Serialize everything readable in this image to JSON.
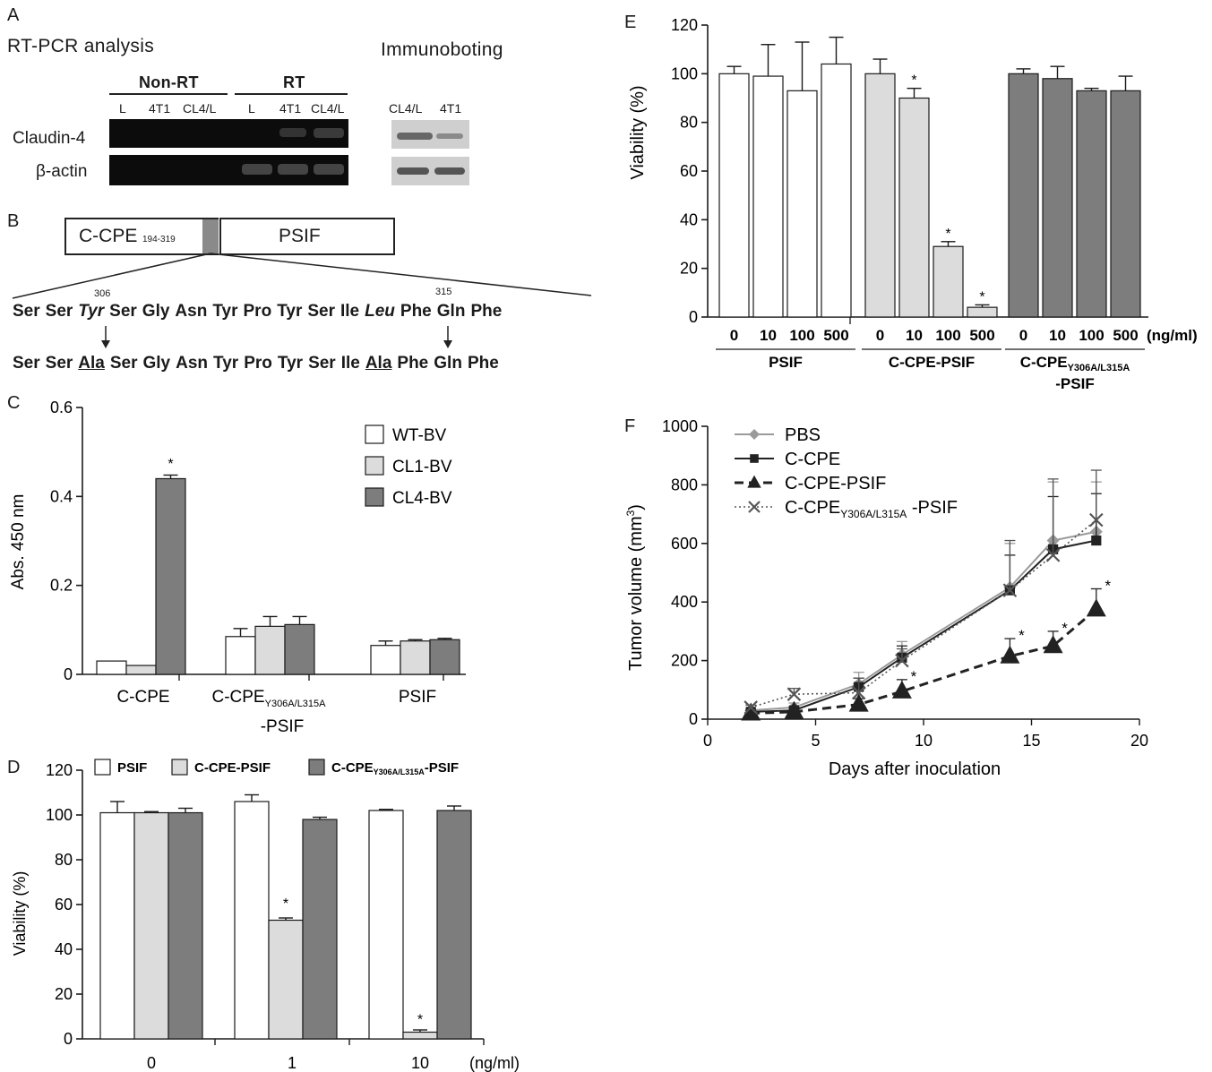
{
  "panelA": {
    "letter": "A",
    "rt_title": "RT-PCR analysis",
    "ib_title": "Immunoboting",
    "group_nonrt": "Non-RT",
    "group_rt": "RT",
    "lanes_nonrt": [
      "L",
      "4T1",
      "CL4/L"
    ],
    "lanes_rt": [
      "L",
      "4T1",
      "CL4/L"
    ],
    "lanes_ib": [
      "CL4/L",
      "4T1"
    ],
    "row1": "Claudin-4",
    "row2": "β-actin"
  },
  "panelB": {
    "letter": "B",
    "box1": "C-CPE",
    "box1_sub": "194-319",
    "box2": "PSIF",
    "pos306": "306",
    "pos315": "315",
    "wild": [
      "Ser",
      "Ser",
      "Tyr",
      "Ser",
      "Gly",
      "Asn",
      "Tyr",
      "Pro",
      "Tyr",
      "Ser",
      "Ile",
      "Leu",
      "Phe",
      "Gln",
      "Phe"
    ],
    "mutant": [
      "Ser",
      "Ser",
      "Ala",
      "Ser",
      "Gly",
      "Asn",
      "Tyr",
      "Pro",
      "Tyr",
      "Ser",
      "Ile",
      "Ala",
      "Phe",
      "Gln",
      "Phe"
    ]
  },
  "colors": {
    "white_bar": "#ffffff",
    "light_bar": "#dcdcdc",
    "dark_bar": "#7d7d7d",
    "axis": "#1a1a1a"
  },
  "chart_data": [
    {
      "panel": "C",
      "type": "bar",
      "ylabel": "Abs. 450 nm",
      "ylim": [
        0,
        0.6
      ],
      "yticks": [
        "0",
        "0.2",
        "0.4",
        "0.6"
      ],
      "categories": [
        "C-CPE",
        "C-CPE",
        "PSIF"
      ],
      "category_sub": [
        "",
        "Y306A/L315A",
        ""
      ],
      "category_line2": [
        "",
        "-PSIF",
        ""
      ],
      "series": [
        {
          "name": "WT-BV",
          "values": [
            0.03,
            0.085,
            0.065
          ],
          "errors": [
            0,
            0.018,
            0.01
          ]
        },
        {
          "name": "CL1-BV",
          "values": [
            0.02,
            0.108,
            0.075
          ],
          "errors": [
            0,
            0.022,
            0.003
          ]
        },
        {
          "name": "CL4-BV",
          "values": [
            0.44,
            0.112,
            0.078
          ],
          "errors": [
            0.008,
            0.018,
            0.003
          ]
        }
      ],
      "stars": [
        "*"
      ],
      "legend_position": "top-right"
    },
    {
      "panel": "D",
      "type": "bar",
      "ylabel": "Viability (%)",
      "ylim": [
        0,
        120
      ],
      "yticks": [
        "0",
        "20",
        "40",
        "60",
        "80",
        "100",
        "120"
      ],
      "categories": [
        "0",
        "1",
        "10"
      ],
      "unit": "(ng/ml)",
      "series": [
        {
          "name": "PSIF",
          "values": [
            101,
            106,
            102
          ],
          "errors": [
            5,
            3,
            0.5
          ]
        },
        {
          "name": "C-CPE-PSIF",
          "name_line": "C-CPE-PSIF",
          "values": [
            101,
            53,
            3
          ],
          "errors": [
            0.5,
            1,
            1
          ]
        },
        {
          "name": "C-CPE",
          "name_sub": "Y306A/L315A",
          "name_suffix": "-PSIF",
          "values": [
            101,
            98,
            102
          ],
          "errors": [
            2,
            1,
            2
          ]
        }
      ],
      "stars": [
        "*",
        "*"
      ],
      "legend_position": "top"
    },
    {
      "panel": "E",
      "type": "bar",
      "ylabel": "Viability (%)",
      "ylim": [
        0,
        120
      ],
      "yticks": [
        "0",
        "20",
        "40",
        "60",
        "80",
        "100",
        "120"
      ],
      "doses": [
        "0",
        "10",
        "100",
        "500"
      ],
      "unit": "(ng/ml)",
      "groups": [
        {
          "label": "PSIF",
          "values": [
            100,
            99,
            93,
            104
          ],
          "errors": [
            3,
            13,
            20,
            11
          ]
        },
        {
          "label": "C-CPE-PSIF",
          "values": [
            100,
            90,
            29,
            4
          ],
          "errors": [
            6,
            4,
            2,
            1
          ]
        },
        {
          "label": "C-CPE",
          "label_sub": "Y306A/L315A",
          "label_line2": "-PSIF",
          "values": [
            100,
            98,
            93,
            93
          ],
          "errors": [
            2,
            5,
            1,
            6
          ]
        }
      ],
      "stars": [
        "*",
        "*",
        "*"
      ]
    },
    {
      "panel": "F",
      "type": "line",
      "xlabel": "Days after inoculation",
      "ylabel": "Tumor volume (mm",
      "ylabel_sup": "3",
      "ylabel_end": ")",
      "xlim": [
        0,
        20
      ],
      "ylim": [
        0,
        1000
      ],
      "xticks": [
        "0",
        "5",
        "10",
        "15",
        "20"
      ],
      "yticks": [
        "0",
        "200",
        "400",
        "600",
        "800",
        "1000"
      ],
      "x": [
        2,
        4,
        7,
        9,
        14,
        16,
        18
      ],
      "series": [
        {
          "name": "PBS",
          "values": [
            30,
            40,
            120,
            220,
            450,
            610,
            640
          ],
          "errors": [
            5,
            15,
            40,
            45,
            150,
            200,
            170
          ]
        },
        {
          "name": "C-CPE",
          "values": [
            25,
            30,
            110,
            210,
            440,
            580,
            610
          ],
          "errors": [
            5,
            10,
            30,
            40,
            120,
            180,
            160
          ]
        },
        {
          "name": "C-CPE-PSIF",
          "values": [
            20,
            25,
            50,
            95,
            215,
            250,
            375
          ],
          "errors": [
            5,
            8,
            20,
            40,
            60,
            50,
            70
          ]
        },
        {
          "name": "C-CPE",
          "name_sub": "Y306A/L315A",
          "name_suffix": " -PSIF",
          "values": [
            40,
            85,
            90,
            200,
            440,
            560,
            680
          ],
          "errors": [
            8,
            20,
            50,
            40,
            170,
            260,
            170
          ]
        }
      ],
      "stars": [
        "*",
        "*",
        "*",
        "*"
      ],
      "legend_position": "top-left"
    }
  ]
}
